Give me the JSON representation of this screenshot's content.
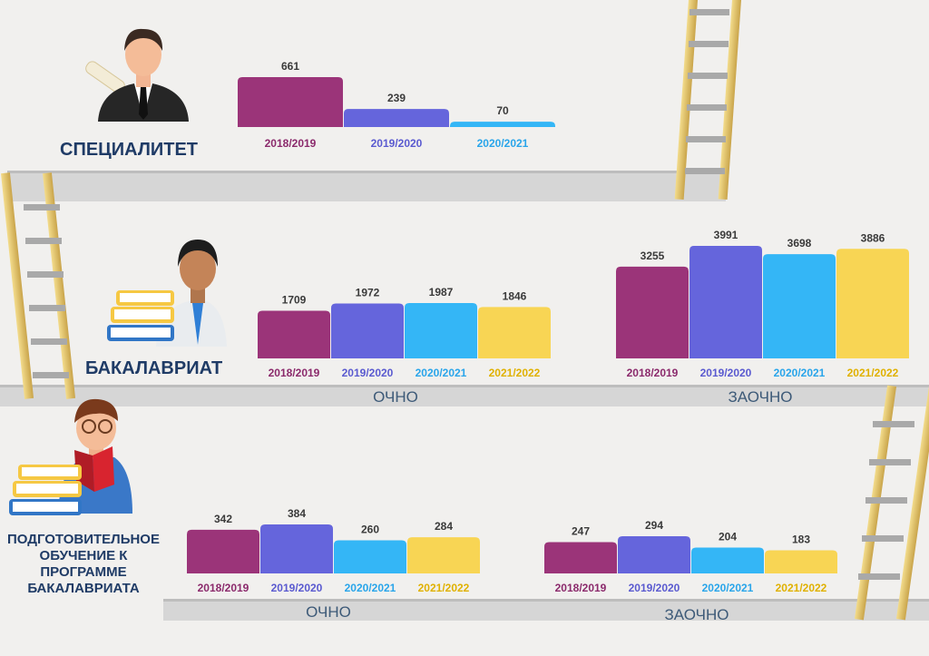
{
  "categories": {
    "specialitet": "СПЕЦИАЛИТЕТ",
    "bakalavriat": "БАКАЛАВРИАТ",
    "podgot": [
      "ПОДГОТОВИТЕЛЬНОЕ",
      "ОБУЧЕНИЕ К",
      "ПРОГРАММЕ",
      "БАКАЛАВРИАТА"
    ]
  },
  "colors": {
    "2018/2019": "#9b3479",
    "2019/2020": "#6565dc",
    "2020/2021": "#34b6f6",
    "2021/2022": "#f8d554"
  },
  "label_colors": {
    "2018/2019": "#8b2a6c",
    "2019/2020": "#5a5ad0",
    "2020/2021": "#29a5ea",
    "2021/2022": "#e0b100"
  },
  "chart_data": [
    {
      "type": "bar",
      "category": "СПЕЦИАЛИТЕТ",
      "mode": "",
      "categories": [
        "2018/2019",
        "2019/2020",
        "2020/2021"
      ],
      "values": [
        661,
        239,
        70
      ]
    },
    {
      "type": "bar",
      "category": "БАКАЛАВРИАТ",
      "mode": "ОЧНО",
      "categories": [
        "2018/2019",
        "2019/2020",
        "2020/2021",
        "2021/2022"
      ],
      "values": [
        1709,
        1972,
        1987,
        1846
      ]
    },
    {
      "type": "bar",
      "category": "БАКАЛАВРИАТ",
      "mode": "ЗАОЧНО",
      "categories": [
        "2018/2019",
        "2019/2020",
        "2020/2021",
        "2021/2022"
      ],
      "values": [
        3255,
        3991,
        3698,
        3886
      ]
    },
    {
      "type": "bar",
      "category": "ПОДГОТОВИТЕЛЬНОЕ ОБУЧЕНИЕ К ПРОГРАММЕ БАКАЛАВРИАТА",
      "mode": "ОЧНО",
      "categories": [
        "2018/2019",
        "2019/2020",
        "2020/2021",
        "2021/2022"
      ],
      "values": [
        342,
        384,
        260,
        284
      ]
    },
    {
      "type": "bar",
      "category": "ПОДГОТОВИТЕЛЬНОЕ ОБУЧЕНИЕ К ПРОГРАММЕ БАКАЛАВРИАТА",
      "mode": "ЗАОЧНО",
      "categories": [
        "2018/2019",
        "2019/2020",
        "2020/2021",
        "2021/2022"
      ],
      "values": [
        247,
        294,
        204,
        183
      ]
    }
  ]
}
